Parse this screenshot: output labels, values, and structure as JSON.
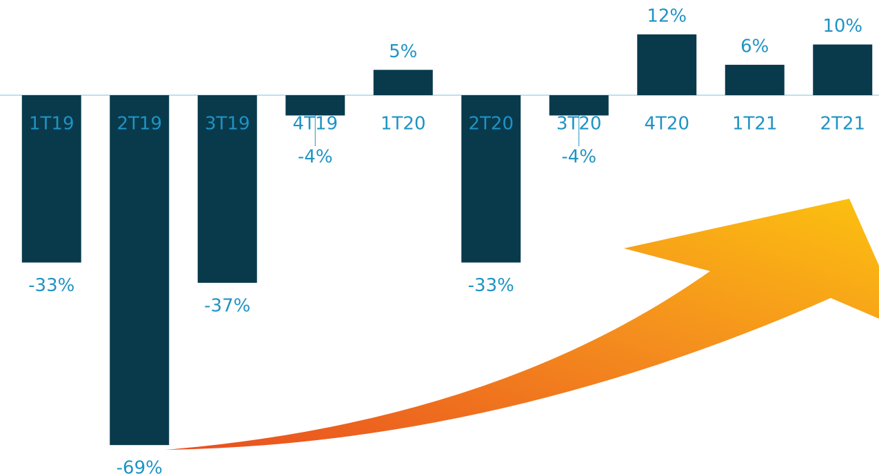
{
  "chart_data": {
    "type": "bar",
    "categories": [
      "1T19",
      "2T19",
      "3T19",
      "4T19",
      "1T20",
      "2T20",
      "3T20",
      "4T20",
      "1T21",
      "2T21"
    ],
    "values": [
      -33,
      -69,
      -37,
      -4,
      5,
      -33,
      -4,
      12,
      6,
      10
    ],
    "value_labels": [
      "-33%",
      "-69%",
      "-37%",
      "-4%",
      "5%",
      "-33%",
      "-4%",
      "12%",
      "6%",
      "10%"
    ],
    "color": "#083a4c"
  }
}
